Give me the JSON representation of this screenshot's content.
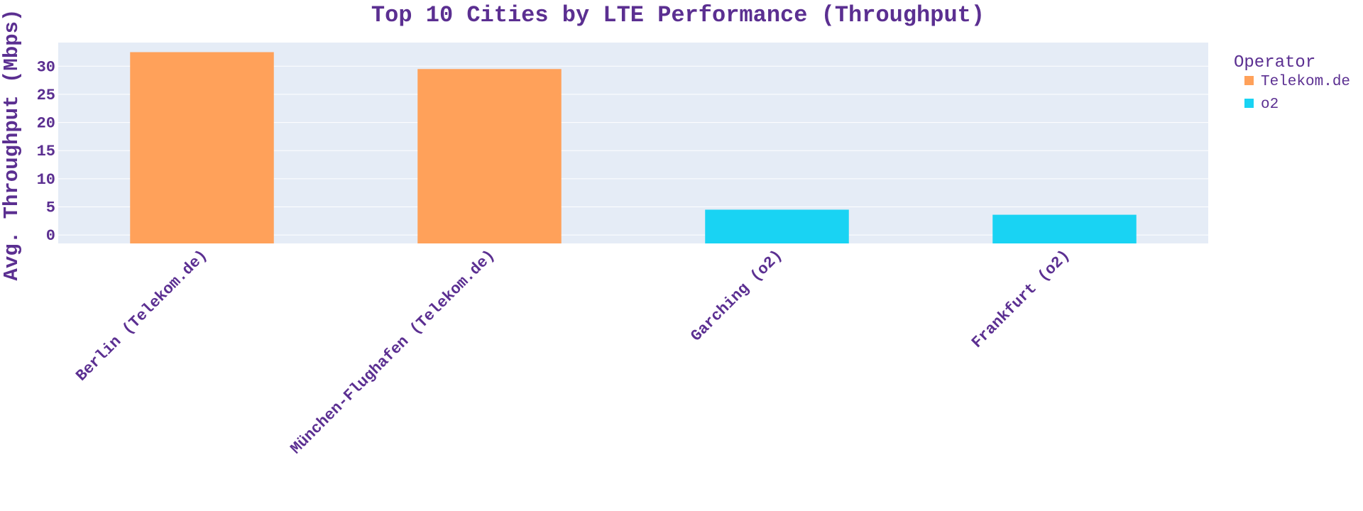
{
  "colors": {
    "text": "#5b2f91",
    "plot_background": "#e5ecf6",
    "grid": "#ffffff"
  },
  "chart_data": {
    "type": "bar",
    "title": "Top 10 Cities by LTE Performance (Throughput)",
    "xlabel": "",
    "ylabel": "Avg. Throughput (Mbps)",
    "ylim": [
      -1.5,
      34.2
    ],
    "yticks": [
      0,
      5,
      10,
      15,
      20,
      25,
      30
    ],
    "grid": true,
    "legend_title": "Operator",
    "legend_position": "right",
    "categories": [
      "Berlin (Telekom.de)",
      "München-Flughafen (Telekom.de)",
      "Garching (o2)",
      "Frankfurt (o2)"
    ],
    "series": [
      {
        "name": "Telekom.de",
        "color": "#ffa15a",
        "values": [
          32.5,
          29.5,
          null,
          null
        ]
      },
      {
        "name": "o2",
        "color": "#19d3f3",
        "values": [
          null,
          null,
          4.5,
          3.6
        ]
      }
    ]
  }
}
